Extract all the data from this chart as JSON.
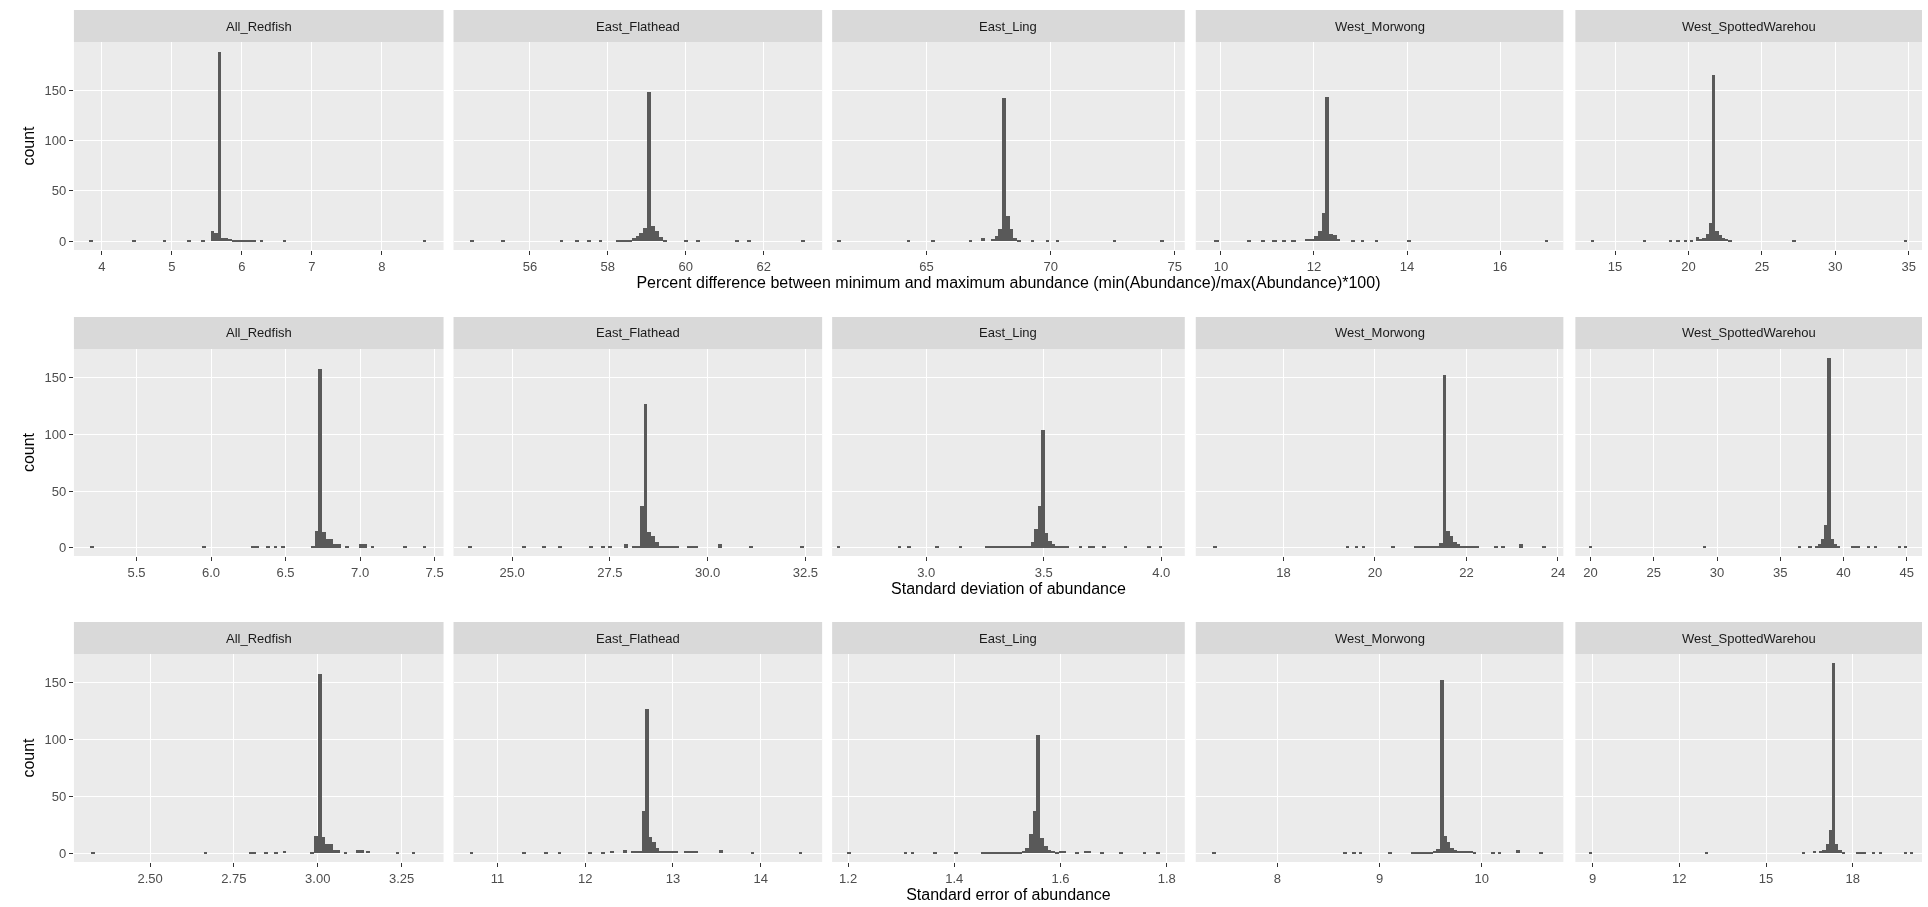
{
  "chart_data": [
    {
      "type": "histogram",
      "title": "All_Redfish",
      "ylabel": "count",
      "color": "#595959",
      "grid": true,
      "xlim": [
        3.6,
        8.88
      ],
      "xticks": [
        4,
        5,
        6,
        7,
        8
      ],
      "ylim": [
        -8.7,
        198
      ],
      "yticks": [
        0,
        50,
        100,
        150
      ],
      "bins": [
        3.82,
        3.87,
        4.43,
        4.48,
        4.87,
        4.92,
        5.22,
        5.27,
        5.42,
        5.47,
        5.55,
        5.6,
        5.65,
        5.7,
        5.75,
        5.8,
        5.85,
        6.2,
        6.25,
        6.3,
        6.58,
        6.63,
        8.58,
        8.63
      ],
      "values": [
        1,
        0,
        1,
        0,
        1,
        0,
        1,
        0,
        1,
        0,
        10,
        8,
        188,
        3,
        3,
        2,
        1,
        0,
        1,
        0,
        1,
        0,
        1
      ]
    },
    {
      "type": "histogram",
      "title": "East_Flathead",
      "color": "#595959",
      "grid": true,
      "tick_labels": "x",
      "xlim": [
        54.04,
        63.5
      ],
      "xticks": [
        56,
        58,
        60,
        62
      ],
      "ylim": [
        -8.7,
        198
      ],
      "yticks": [
        0,
        50,
        100,
        150
      ],
      "bins": [
        54.45,
        54.55,
        55.25,
        55.35,
        56.75,
        56.85,
        57.15,
        57.25,
        57.45,
        57.55,
        57.75,
        57.85,
        58.2,
        58.6,
        58.7,
        58.8,
        58.9,
        59.0,
        59.1,
        59.2,
        59.3,
        59.4,
        59.5,
        59.95,
        60.05,
        60.25,
        60.35,
        61.25,
        61.35,
        61.55,
        61.65,
        62.95,
        63.05
      ],
      "values": [
        1,
        0,
        1,
        0,
        1,
        0,
        1,
        0,
        1,
        0,
        1,
        0,
        1,
        3,
        5,
        8,
        13,
        148,
        15,
        10,
        4,
        1,
        0,
        1,
        0,
        1,
        0,
        1,
        0,
        1,
        0,
        1
      ]
    },
    {
      "type": "histogram",
      "title": "East_Ling",
      "xlabel": "Percent difference between minimum and maximum abundance (min(Abundance)/max(Abundance)*100)",
      "color": "#595959",
      "grid": true,
      "tick_labels": "x",
      "xlim": [
        61.2,
        75.4
      ],
      "xticks": [
        65,
        70,
        75
      ],
      "ylim": [
        -8.7,
        198
      ],
      "yticks": [
        0,
        50,
        100,
        150
      ],
      "bins": [
        61.4,
        61.55,
        64.2,
        64.35,
        65.2,
        65.35,
        66.7,
        66.85,
        67.2,
        67.35,
        67.6,
        67.75,
        67.9,
        68.05,
        68.2,
        68.35,
        68.5,
        68.65,
        68.8,
        69.2,
        69.35,
        69.8,
        69.95,
        70.2,
        70.35,
        72.5,
        72.65,
        74.4,
        74.55
      ],
      "values": [
        1,
        0,
        1,
        0,
        1,
        0,
        1,
        0,
        3,
        0,
        2,
        5,
        12,
        142,
        25,
        12,
        3,
        1,
        0,
        1,
        0,
        1,
        0,
        1,
        0,
        1,
        0,
        1
      ]
    },
    {
      "type": "histogram",
      "title": "West_Morwong",
      "color": "#595959",
      "grid": true,
      "tick_labels": "x",
      "xlim": [
        9.46,
        17.36
      ],
      "xticks": [
        10,
        12,
        14,
        16
      ],
      "ylim": [
        -8.7,
        198
      ],
      "yticks": [
        0,
        50,
        100,
        150
      ],
      "bins": [
        9.85,
        9.95,
        10.55,
        10.65,
        10.85,
        10.95,
        11.1,
        11.2,
        11.3,
        11.4,
        11.5,
        11.6,
        11.8,
        12.0,
        12.08,
        12.16,
        12.24,
        12.32,
        12.4,
        12.48,
        12.56,
        12.8,
        12.88,
        13.0,
        13.08,
        13.3,
        13.38,
        14.0,
        14.08,
        16.95,
        17.03
      ],
      "values": [
        1,
        0,
        1,
        0,
        1,
        0,
        1,
        0,
        1,
        0,
        1,
        0,
        2,
        5,
        10,
        28,
        143,
        7,
        6,
        2,
        0,
        1,
        0,
        1,
        0,
        1,
        0,
        1,
        0,
        1
      ]
    },
    {
      "type": "histogram",
      "title": "West_SpottedWarehou",
      "color": "#595959",
      "grid": true,
      "tick_labels": "x",
      "xlim": [
        12.3,
        35.9
      ],
      "xticks": [
        15,
        20,
        25,
        30,
        35
      ],
      "ylim": [
        -8.7,
        198
      ],
      "yticks": [
        0,
        50,
        100,
        150
      ],
      "bins": [
        13.4,
        13.62,
        16.9,
        17.12,
        18.7,
        18.92,
        19.2,
        19.42,
        19.7,
        19.92,
        20.1,
        20.32,
        20.54,
        20.76,
        20.98,
        21.2,
        21.42,
        21.64,
        21.86,
        22.08,
        22.3,
        22.52,
        22.74,
        22.96,
        27.1,
        27.32,
        34.7,
        34.92
      ],
      "values": [
        1,
        0,
        1,
        0,
        1,
        0,
        1,
        0,
        1,
        0,
        1,
        0,
        4,
        2,
        3,
        7,
        18,
        165,
        10,
        6,
        3,
        2,
        1,
        0,
        1,
        0,
        1
      ]
    },
    {
      "type": "histogram",
      "title": "All_Redfish",
      "ylabel": "count",
      "color": "#595959",
      "grid": true,
      "xlim": [
        5.08,
        7.56
      ],
      "xticks": [
        {
          "value": 5.5,
          "label": "5.5"
        },
        {
          "value": 6,
          "label": "6.0"
        },
        {
          "value": 6.5,
          "label": "6.5"
        },
        {
          "value": 7,
          "label": "7.0"
        },
        {
          "value": 7.5,
          "label": "7.5"
        }
      ],
      "ylim": [
        -7.2,
        175
      ],
      "yticks": [
        0,
        50,
        100,
        150
      ],
      "bins": [
        5.19,
        5.215,
        5.94,
        5.965,
        6.27,
        6.32,
        6.37,
        6.395,
        6.42,
        6.445,
        6.47,
        6.495,
        6.67,
        6.695,
        6.72,
        6.745,
        6.77,
        6.795,
        6.82,
        6.845,
        6.87,
        6.9,
        6.925,
        6.995,
        7.045,
        7.07,
        7.095,
        7.29,
        7.315,
        7.42,
        7.445
      ],
      "values": [
        1,
        0,
        1,
        0,
        1,
        0,
        1,
        0,
        1,
        0,
        2,
        0,
        1,
        15,
        157,
        14,
        8,
        8,
        3,
        3,
        0,
        1,
        0,
        3,
        0,
        2,
        0,
        1,
        0,
        1
      ]
    },
    {
      "type": "histogram",
      "title": "East_Flathead",
      "color": "#595959",
      "grid": true,
      "tick_labels": "x",
      "xlim": [
        23.5,
        32.93
      ],
      "xticks": [
        {
          "value": 25,
          "label": "25.0"
        },
        {
          "value": 27.5,
          "label": "27.5"
        },
        {
          "value": 30,
          "label": "30.0"
        },
        {
          "value": 32.5,
          "label": "32.5"
        }
      ],
      "ylim": [
        -7.2,
        175
      ],
      "yticks": [
        0,
        50,
        100,
        150
      ],
      "bins": [
        23.85,
        23.95,
        25.25,
        25.35,
        25.75,
        25.85,
        26.15,
        26.25,
        26.95,
        27.05,
        27.25,
        27.35,
        27.45,
        27.55,
        27.85,
        27.95,
        28.05,
        28.25,
        28.35,
        28.45,
        28.55,
        28.65,
        28.75,
        28.85,
        29.25,
        29.45,
        29.75,
        30.25,
        30.35,
        31.05,
        31.15,
        32.35,
        32.45
      ],
      "values": [
        1,
        0,
        1,
        0,
        1,
        0,
        1,
        0,
        1,
        0,
        1,
        0,
        2,
        0,
        3,
        0,
        2,
        37,
        127,
        14,
        10,
        5,
        2,
        2,
        0,
        2,
        0,
        3,
        0,
        1,
        0,
        1
      ]
    },
    {
      "type": "histogram",
      "title": "East_Ling",
      "xlabel": "Standard deviation of abundance",
      "color": "#595959",
      "grid": true,
      "tick_labels": "x",
      "xlim": [
        2.6,
        4.1
      ],
      "xticks": [
        {
          "value": 3,
          "label": "3.0"
        },
        {
          "value": 3.5,
          "label": "3.5"
        },
        {
          "value": 4,
          "label": "4.0"
        }
      ],
      "ylim": [
        -7.2,
        175
      ],
      "yticks": [
        0,
        50,
        100,
        150
      ],
      "bins": [
        2.62,
        2.635,
        2.88,
        2.895,
        2.92,
        2.935,
        3.04,
        3.055,
        3.14,
        3.155,
        3.25,
        3.43,
        3.445,
        3.46,
        3.475,
        3.49,
        3.505,
        3.52,
        3.535,
        3.55,
        3.565,
        3.58,
        3.61,
        3.65,
        3.665,
        3.69,
        3.72,
        3.75,
        3.765,
        3.84,
        3.855,
        3.94,
        3.955,
        3.99,
        4.005
      ],
      "values": [
        1,
        0,
        1,
        0,
        1,
        0,
        1,
        0,
        1,
        0,
        1,
        2,
        5,
        17,
        37,
        104,
        13,
        6,
        3,
        2,
        1,
        2,
        0,
        1,
        0,
        2,
        0,
        1,
        0,
        1,
        0,
        1,
        0,
        1
      ]
    },
    {
      "type": "histogram",
      "title": "West_Morwong",
      "color": "#595959",
      "grid": true,
      "tick_labels": "x",
      "xlim": [
        16.08,
        24.12
      ],
      "xticks": [
        18,
        20,
        22,
        24
      ],
      "ylim": [
        -7.2,
        175
      ],
      "yticks": [
        0,
        50,
        100,
        150
      ],
      "bins": [
        16.45,
        16.53,
        19.35,
        19.43,
        19.55,
        19.63,
        19.7,
        19.78,
        20.35,
        20.43,
        20.85,
        21.0,
        21.33,
        21.405,
        21.48,
        21.555,
        21.63,
        21.705,
        21.78,
        21.855,
        22.2,
        22.28,
        22.6,
        22.68,
        22.75,
        22.83,
        23.15,
        23.23,
        23.65,
        23.73
      ],
      "values": [
        1,
        0,
        1,
        0,
        1,
        0,
        1,
        0,
        1,
        0,
        1,
        1,
        2,
        4,
        152,
        15,
        10,
        5,
        3,
        2,
        1,
        0,
        1,
        0,
        1,
        0,
        3,
        0,
        1
      ]
    },
    {
      "type": "histogram",
      "title": "West_SpottedWarehou",
      "color": "#595959",
      "grid": true,
      "tick_labels": "x",
      "xlim": [
        18.8,
        46.2
      ],
      "xticks": [
        20,
        25,
        30,
        35,
        40,
        45
      ],
      "ylim": [
        -7.2,
        175
      ],
      "yticks": [
        0,
        50,
        100,
        150
      ],
      "bins": [
        19.9,
        20.15,
        28.9,
        29.15,
        36.4,
        36.65,
        37.25,
        37.5,
        37.75,
        38.0,
        38.25,
        38.5,
        38.75,
        39.0,
        39.25,
        39.5,
        39.75,
        40.6,
        41.35,
        41.85,
        42.1,
        42.4,
        42.65,
        44.3,
        44.55,
        44.8,
        45.05
      ],
      "values": [
        1,
        0,
        1,
        0,
        1,
        0,
        2,
        0,
        2,
        3,
        8,
        20,
        167,
        8,
        3,
        1,
        0,
        1,
        0,
        1,
        0,
        1,
        0,
        1,
        0,
        1
      ]
    },
    {
      "type": "histogram",
      "title": "All_Redfish",
      "ylabel": "count",
      "color": "#595959",
      "grid": true,
      "xlim": [
        2.273,
        3.375
      ],
      "xticks": [
        {
          "value": 2.5,
          "label": "2.50"
        },
        {
          "value": 2.75,
          "label": "2.75"
        },
        {
          "value": 3,
          "label": "3.00"
        },
        {
          "value": 3.25,
          "label": "3.25"
        }
      ],
      "ylim": [
        -7.7,
        175
      ],
      "yticks": [
        0,
        50,
        100,
        150
      ],
      "bins": [
        2.325,
        2.336,
        2.66,
        2.671,
        2.795,
        2.817,
        2.84,
        2.851,
        2.87,
        2.881,
        2.895,
        2.906,
        2.978,
        2.989,
        3.0,
        3.011,
        3.022,
        3.033,
        3.044,
        3.055,
        3.066,
        3.077,
        3.088,
        3.115,
        3.137,
        3.145,
        3.156,
        3.232,
        3.243,
        3.28,
        3.291
      ],
      "values": [
        1,
        0,
        1,
        0,
        1,
        0,
        1,
        0,
        1,
        0,
        2,
        0,
        1,
        15,
        157,
        14,
        8,
        8,
        3,
        3,
        0,
        1,
        0,
        3,
        0,
        2,
        0,
        1,
        0,
        1
      ]
    },
    {
      "type": "histogram",
      "title": "East_Flathead",
      "color": "#595959",
      "grid": true,
      "tick_labels": "x",
      "xlim": [
        10.5,
        14.7
      ],
      "xticks": [
        11,
        12,
        13,
        14
      ],
      "ylim": [
        -7.7,
        175
      ],
      "yticks": [
        0,
        50,
        100,
        150
      ],
      "bins": [
        10.68,
        10.72,
        11.28,
        11.32,
        11.53,
        11.57,
        11.68,
        11.72,
        12.03,
        12.07,
        12.18,
        12.22,
        12.28,
        12.32,
        12.43,
        12.47,
        12.52,
        12.64,
        12.68,
        12.72,
        12.76,
        12.8,
        12.84,
        12.88,
        13.05,
        13.12,
        13.28,
        13.52,
        13.56,
        13.88,
        13.92,
        14.43,
        14.47
      ],
      "values": [
        1,
        0,
        1,
        0,
        1,
        0,
        1,
        0,
        1,
        0,
        1,
        0,
        2,
        0,
        3,
        0,
        2,
        37,
        127,
        14,
        10,
        5,
        2,
        2,
        0,
        2,
        0,
        3,
        0,
        1,
        0,
        1
      ]
    },
    {
      "type": "histogram",
      "title": "East_Ling",
      "xlabel": "Standard error of abundance",
      "color": "#595959",
      "grid": true,
      "tick_labels": "x",
      "xlim": [
        1.17,
        1.834
      ],
      "xticks": [
        1.2,
        1.4,
        1.6,
        1.8
      ],
      "ylim": [
        -7.7,
        175
      ],
      "yticks": [
        0,
        50,
        100,
        150
      ],
      "bins": [
        1.198,
        1.205,
        1.305,
        1.312,
        1.318,
        1.325,
        1.36,
        1.367,
        1.4,
        1.407,
        1.45,
        1.527,
        1.534,
        1.541,
        1.548,
        1.555,
        1.562,
        1.569,
        1.576,
        1.583,
        1.59,
        1.597,
        1.61,
        1.628,
        1.635,
        1.645,
        1.658,
        1.675,
        1.682,
        1.71,
        1.717,
        1.755,
        1.762,
        1.78,
        1.787
      ],
      "values": [
        1,
        0,
        1,
        0,
        1,
        0,
        1,
        0,
        1,
        0,
        1,
        2,
        5,
        17,
        37,
        104,
        13,
        6,
        3,
        2,
        1,
        2,
        0,
        1,
        0,
        2,
        0,
        1,
        0,
        1,
        0,
        1,
        0,
        1
      ]
    },
    {
      "type": "histogram",
      "title": "West_Morwong",
      "color": "#595959",
      "grid": true,
      "tick_labels": "x",
      "xlim": [
        7.2,
        10.8
      ],
      "xticks": [
        8,
        9,
        10
      ],
      "ylim": [
        -7.7,
        175
      ],
      "yticks": [
        0,
        50,
        100,
        150
      ],
      "bins": [
        7.36,
        7.395,
        8.64,
        8.675,
        8.73,
        8.765,
        8.795,
        8.83,
        9.085,
        9.12,
        9.31,
        9.375,
        9.525,
        9.555,
        9.59,
        9.625,
        9.655,
        9.69,
        9.725,
        9.755,
        9.91,
        9.945,
        10.09,
        10.125,
        10.155,
        10.19,
        10.335,
        10.37,
        10.56,
        10.595
      ],
      "values": [
        1,
        0,
        1,
        0,
        1,
        0,
        1,
        0,
        1,
        0,
        1,
        1,
        2,
        4,
        152,
        15,
        10,
        5,
        3,
        2,
        1,
        0,
        1,
        0,
        1,
        0,
        3,
        0,
        1
      ]
    },
    {
      "type": "histogram",
      "title": "West_SpottedWarehou",
      "color": "#595959",
      "grid": true,
      "tick_labels": "x",
      "xlim": [
        8.4,
        20.4
      ],
      "xticks": [
        9,
        12,
        15,
        18
      ],
      "ylim": [
        -7.7,
        175
      ],
      "yticks": [
        0,
        50,
        100,
        150
      ],
      "bins": [
        8.88,
        9.0,
        12.9,
        13.01,
        16.25,
        16.36,
        16.63,
        16.74,
        16.85,
        16.96,
        17.08,
        17.19,
        17.3,
        17.41,
        17.52,
        17.63,
        17.75,
        18.13,
        18.46,
        18.68,
        18.79,
        18.93,
        19.04,
        19.78,
        19.89,
        20.0,
        20.11
      ],
      "values": [
        1,
        0,
        1,
        0,
        1,
        0,
        2,
        0,
        2,
        3,
        8,
        20,
        167,
        8,
        3,
        1,
        0,
        1,
        0,
        1,
        0,
        1,
        0,
        1,
        0,
        1
      ]
    }
  ]
}
